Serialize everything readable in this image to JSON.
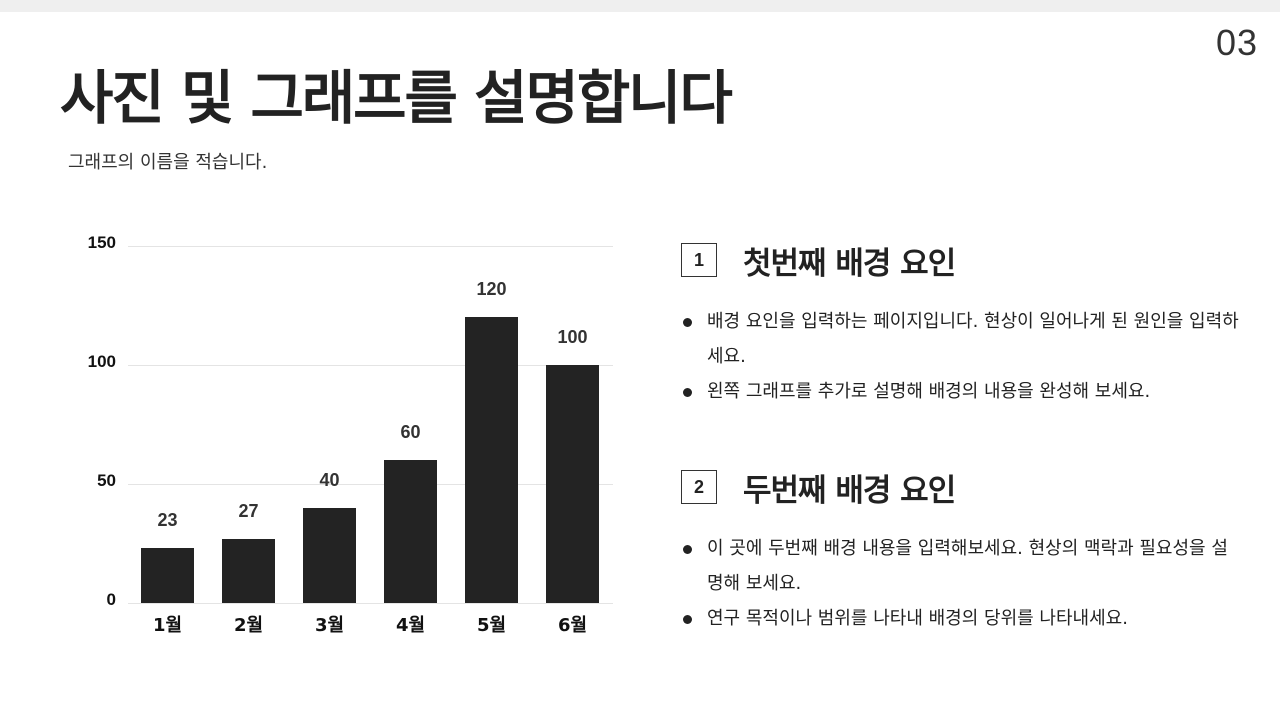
{
  "page": {
    "number": "03",
    "title": "사진 및 그래프를 설명합니다",
    "subtitle": "그래프의 이름을 적습니다."
  },
  "chart_data": {
    "type": "bar",
    "title": "",
    "xlabel": "",
    "ylabel": "",
    "categories": [
      "1월",
      "2월",
      "3월",
      "4월",
      "5월",
      "6월"
    ],
    "values": [
      23,
      27,
      40,
      60,
      120,
      100
    ],
    "value_labels": [
      "23",
      "27",
      "40",
      "60",
      "120",
      "100"
    ],
    "y_ticks": [
      "150",
      "100",
      "50",
      "0"
    ],
    "ylim": [
      0,
      150
    ],
    "grid": true,
    "legend": "none",
    "bar_color": "#232323"
  },
  "sections": [
    {
      "number": "1",
      "title": "첫번째 배경 요인",
      "bullets": [
        "배경 요인을 입력하는 페이지입니다. 현상이 일어나게 된 원인을 입력하세요.",
        "왼쪽 그래프를 추가로 설명해 배경의 내용을 완성해 보세요."
      ]
    },
    {
      "number": "2",
      "title": "두번째 배경 요인",
      "bullets": [
        "이 곳에 두번째 배경 내용을 입력해보세요. 현상의 맥락과 필요성을 설명해 보세요.",
        "연구 목적이나 범위를 나타내 배경의 당위를 나타내세요."
      ]
    }
  ]
}
